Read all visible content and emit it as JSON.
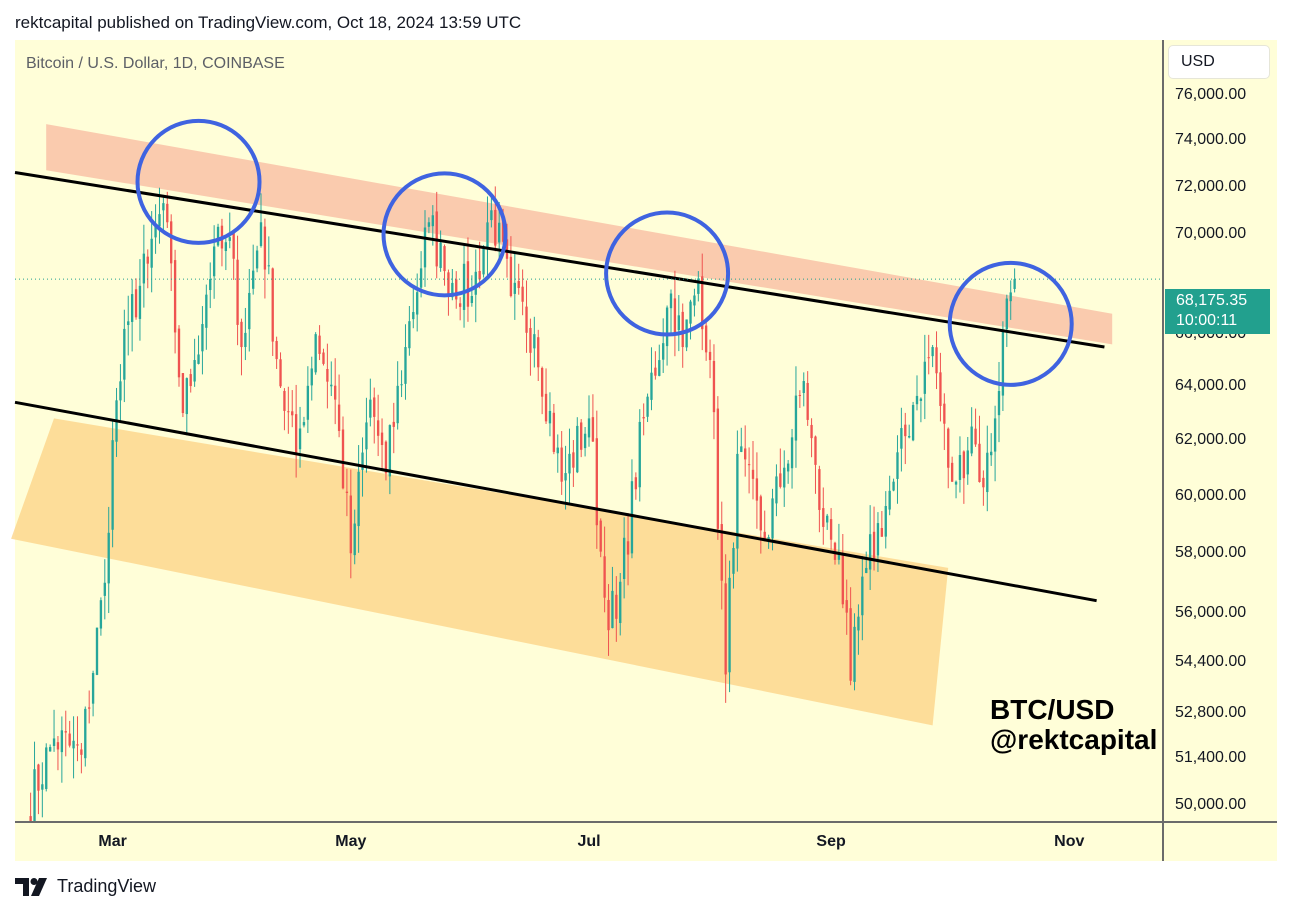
{
  "header": {
    "publisher_line": "rektcapital published on TradingView.com, Oct 18, 2024 13:59 UTC"
  },
  "symbol_info": "Bitcoin / U.S. Dollar, 1D, COINBASE",
  "currency_button": "USD",
  "last_price": {
    "value": "68,175.35",
    "countdown": "10:00:11"
  },
  "watermark": {
    "line1": "BTC/USD",
    "line2": "@rektcapital"
  },
  "footer": {
    "brand": "TradingView"
  },
  "colors": {
    "background": "#fffed8",
    "up": "#26a69a",
    "down": "#ef5350",
    "resistance_zone": "#f8b9a0",
    "support_zone": "#fcd48a",
    "circle": "#3f63e0",
    "trendline": "#000000",
    "price_tag": "#22a08e"
  },
  "chart_data": {
    "type": "candlestick",
    "title": "Bitcoin / U.S. Dollar, 1D, COINBASE",
    "x_ticks": [
      "Mar",
      "May",
      "Jul",
      "Sep",
      "Nov"
    ],
    "y_ticks": [
      "76,000.00",
      "74,000.00",
      "72,000.00",
      "70,000.00",
      "66,000.00",
      "64,000.00",
      "62,000.00",
      "60,000.00",
      "58,000.00",
      "56,000.00",
      "54,400.00",
      "52,800.00",
      "51,400.00",
      "50,000.00"
    ],
    "y_scale": "log",
    "ylim": [
      49500,
      78500
    ],
    "xlim": [
      "2024-02-05",
      "2024-11-25"
    ],
    "last_price": 68175.35,
    "anchors": [
      [
        "2024-02-08",
        49800
      ],
      [
        "2024-02-15",
        52000
      ],
      [
        "2024-02-22",
        51500
      ],
      [
        "2024-02-28",
        57000
      ],
      [
        "2024-03-01",
        62000
      ],
      [
        "2024-03-05",
        66500
      ],
      [
        "2024-03-10",
        68800
      ],
      [
        "2024-03-14",
        71300
      ],
      [
        "2024-03-19",
        63000
      ],
      [
        "2024-03-22",
        65000
      ],
      [
        "2024-03-27",
        69500
      ],
      [
        "2024-04-01",
        69000
      ],
      [
        "2024-04-03",
        65500
      ],
      [
        "2024-04-08",
        70500
      ],
      [
        "2024-04-13",
        64000
      ],
      [
        "2024-04-17",
        61500
      ],
      [
        "2024-04-22",
        66000
      ],
      [
        "2024-04-27",
        63500
      ],
      [
        "2024-05-01",
        58000
      ],
      [
        "2024-05-06",
        63500
      ],
      [
        "2024-05-10",
        60800
      ],
      [
        "2024-05-15",
        65500
      ],
      [
        "2024-05-21",
        70500
      ],
      [
        "2024-05-25",
        68500
      ],
      [
        "2024-06-01",
        67500
      ],
      [
        "2024-06-06",
        71000
      ],
      [
        "2024-06-11",
        67500
      ],
      [
        "2024-06-17",
        66000
      ],
      [
        "2024-06-24",
        60500
      ],
      [
        "2024-07-01",
        62800
      ],
      [
        "2024-07-05",
        56500
      ],
      [
        "2024-07-08",
        55800
      ],
      [
        "2024-07-15",
        62800
      ],
      [
        "2024-07-22",
        67600
      ],
      [
        "2024-07-25",
        65500
      ],
      [
        "2024-07-29",
        68200
      ],
      [
        "2024-08-01",
        65000
      ],
      [
        "2024-08-05",
        54000
      ],
      [
        "2024-08-08",
        61500
      ],
      [
        "2024-08-15",
        58500
      ],
      [
        "2024-08-20",
        61000
      ],
      [
        "2024-08-25",
        64200
      ],
      [
        "2024-08-29",
        59500
      ],
      [
        "2024-09-03",
        58000
      ],
      [
        "2024-09-06",
        53800
      ],
      [
        "2024-09-10",
        57500
      ],
      [
        "2024-09-17",
        60500
      ],
      [
        "2024-09-22",
        63300
      ],
      [
        "2024-09-27",
        65500
      ],
      [
        "2024-10-01",
        61000
      ],
      [
        "2024-10-03",
        60500
      ],
      [
        "2024-10-07",
        62500
      ],
      [
        "2024-10-10",
        60300
      ],
      [
        "2024-10-13",
        62800
      ],
      [
        "2024-10-16",
        67400
      ],
      [
        "2024-10-18",
        68175
      ]
    ],
    "trendlines": [
      {
        "from": [
          "2024-02-05",
          72600
        ],
        "to": [
          "2024-11-10",
          65500
        ]
      },
      {
        "from": [
          "2024-02-05",
          63400
        ],
        "to": [
          "2024-11-08",
          56400
        ]
      }
    ],
    "zones": [
      {
        "name": "resistance",
        "corners": [
          [
            "2024-02-13",
            74700
          ],
          [
            "2024-11-12",
            66800
          ],
          [
            "2024-11-12",
            65600
          ],
          [
            "2024-02-13",
            72700
          ]
        ]
      },
      {
        "name": "support",
        "corners": [
          [
            "2024-02-15",
            62800
          ],
          [
            "2024-10-01",
            57500
          ],
          [
            "2024-09-27",
            52400
          ],
          [
            "2024-02-04",
            58500
          ]
        ]
      }
    ],
    "circles": [
      [
        "2024-03-23",
        72200
      ],
      [
        "2024-05-25",
        70000
      ],
      [
        "2024-07-21",
        68400
      ],
      [
        "2024-10-17",
        66400
      ]
    ]
  }
}
